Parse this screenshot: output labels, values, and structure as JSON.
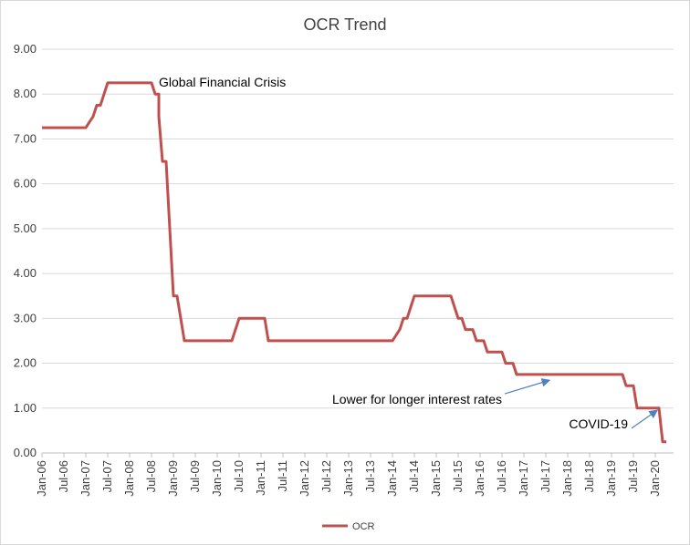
{
  "chart_data": {
    "type": "line",
    "title": "OCR Trend",
    "xlabel": "",
    "ylabel": "",
    "ylim": [
      0,
      9
    ],
    "yticks": [
      "0.00",
      "1.00",
      "2.00",
      "3.00",
      "4.00",
      "5.00",
      "6.00",
      "7.00",
      "8.00",
      "9.00"
    ],
    "xlim": [
      "Jan-06",
      "Jun-20"
    ],
    "xticks": [
      "Jan-06",
      "Jul-06",
      "Jan-07",
      "Jul-07",
      "Jan-08",
      "Jul-08",
      "Jan-09",
      "Jul-09",
      "Jan-10",
      "Jul-10",
      "Jan-11",
      "Jul-11",
      "Jan-12",
      "Jul-12",
      "Jan-13",
      "Jul-13",
      "Jan-14",
      "Jul-14",
      "Jan-15",
      "Jul-15",
      "Jan-16",
      "Jul-16",
      "Jan-17",
      "Jul-17",
      "Jan-18",
      "Jul-18",
      "Jan-19",
      "Jul-19",
      "Jan-20"
    ],
    "grid": "horizontal",
    "legend_position": "bottom",
    "series": [
      {
        "name": "OCR",
        "color": "#c0504d",
        "points": [
          [
            "Jan-06",
            7.25
          ],
          [
            "Jan-07",
            7.25
          ],
          [
            "Mar-07",
            7.5
          ],
          [
            "Apr-07",
            7.75
          ],
          [
            "May-07",
            7.75
          ],
          [
            "Jun-07",
            8.0
          ],
          [
            "Jul-07",
            8.25
          ],
          [
            "Jul-08",
            8.25
          ],
          [
            "Aug-08",
            8.0
          ],
          [
            "Sep-08",
            8.0
          ],
          [
            "Sep-08",
            7.5
          ],
          [
            "Oct-08",
            6.5
          ],
          [
            "Nov-08",
            6.5
          ],
          [
            "Dec-08",
            5.0
          ],
          [
            "Jan-09",
            3.5
          ],
          [
            "Feb-09",
            3.5
          ],
          [
            "Mar-09",
            3.0
          ],
          [
            "Apr-09",
            2.5
          ],
          [
            "May-10",
            2.5
          ],
          [
            "Jun-10",
            2.75
          ],
          [
            "Jul-10",
            3.0
          ],
          [
            "Feb-11",
            3.0
          ],
          [
            "Mar-11",
            2.5
          ],
          [
            "Jan-14",
            2.5
          ],
          [
            "Mar-14",
            2.75
          ],
          [
            "Apr-14",
            3.0
          ],
          [
            "May-14",
            3.0
          ],
          [
            "Jun-14",
            3.25
          ],
          [
            "Jul-14",
            3.5
          ],
          [
            "May-15",
            3.5
          ],
          [
            "Jun-15",
            3.25
          ],
          [
            "Jul-15",
            3.0
          ],
          [
            "Aug-15",
            3.0
          ],
          [
            "Sep-15",
            2.75
          ],
          [
            "Nov-15",
            2.75
          ],
          [
            "Dec-15",
            2.5
          ],
          [
            "Feb-16",
            2.5
          ],
          [
            "Mar-16",
            2.25
          ],
          [
            "Jul-16",
            2.25
          ],
          [
            "Aug-16",
            2.0
          ],
          [
            "Oct-16",
            2.0
          ],
          [
            "Nov-16",
            1.75
          ],
          [
            "Apr-19",
            1.75
          ],
          [
            "May-19",
            1.5
          ],
          [
            "Jul-19",
            1.5
          ],
          [
            "Aug-19",
            1.0
          ],
          [
            "Feb-20",
            1.0
          ],
          [
            "Mar-20",
            0.25
          ],
          [
            "Apr-20",
            0.25
          ]
        ]
      }
    ],
    "annotations": [
      {
        "text": "Global Financial Crisis",
        "x": "Jul-08",
        "y": 8.25
      },
      {
        "text": "Lower for longer interest rates",
        "x": "Jul-17",
        "y": 1.62,
        "arrow_from": [
          "Jul-17",
          1.35
        ],
        "arrow_to": [
          "Jul-17",
          1.62
        ]
      },
      {
        "text": "COVID-19",
        "x": "Jan-20",
        "y": 0.95,
        "arrow_from": [
          "Jan-20",
          0.55
        ],
        "arrow_to": [
          "Feb-20",
          0.95
        ]
      }
    ]
  }
}
